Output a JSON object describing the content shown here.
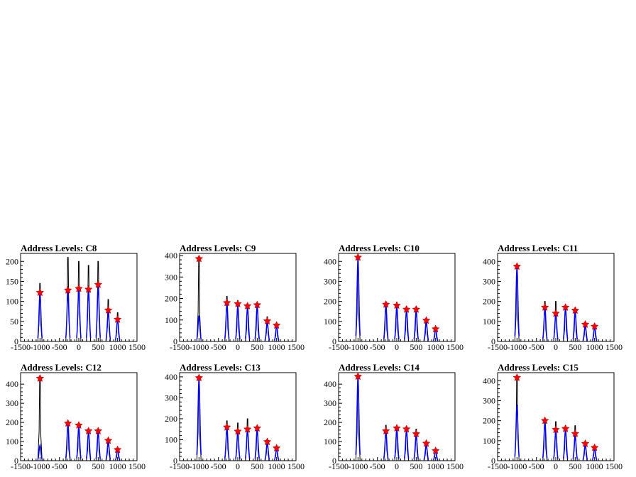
{
  "chart_data": [
    {
      "type": "histogram",
      "title": "Address Levels: C8",
      "xlim": [
        -1500,
        1500
      ],
      "ylim": [
        0,
        220
      ],
      "xticks": [
        -1500,
        -1000,
        -500,
        0,
        500,
        1000,
        1500
      ],
      "yticks": [
        0,
        50,
        100,
        150,
        200
      ],
      "peaks": [
        {
          "x": -1000,
          "y": 145,
          "fit": 120,
          "marker": 122
        },
        {
          "x": -280,
          "y": 210,
          "fit": 125,
          "marker": 128
        },
        {
          "x": 0,
          "y": 200,
          "fit": 130,
          "marker": 132
        },
        {
          "x": 250,
          "y": 190,
          "fit": 128,
          "marker": 130
        },
        {
          "x": 500,
          "y": 200,
          "fit": 140,
          "marker": 142
        },
        {
          "x": 760,
          "y": 105,
          "fit": 75,
          "marker": 78
        },
        {
          "x": 1000,
          "y": 72,
          "fit": 55,
          "marker": 55
        }
      ]
    },
    {
      "type": "histogram",
      "title": "Address Levels: C9",
      "xlim": [
        -1500,
        1500
      ],
      "ylim": [
        0,
        410
      ],
      "xticks": [
        -1500,
        -1000,
        -500,
        0,
        500,
        1000,
        1500
      ],
      "yticks": [
        0,
        100,
        200,
        300,
        400
      ],
      "peaks": [
        {
          "x": -1000,
          "y": 390,
          "fit": 120,
          "marker": 385
        },
        {
          "x": -280,
          "y": 210,
          "fit": 175,
          "marker": 180
        },
        {
          "x": 0,
          "y": 190,
          "fit": 165,
          "marker": 175
        },
        {
          "x": 250,
          "y": 175,
          "fit": 160,
          "marker": 165
        },
        {
          "x": 500,
          "y": 180,
          "fit": 165,
          "marker": 170
        },
        {
          "x": 760,
          "y": 115,
          "fit": 90,
          "marker": 95
        },
        {
          "x": 1000,
          "y": 85,
          "fit": 70,
          "marker": 75
        }
      ]
    },
    {
      "type": "histogram",
      "title": "Address Levels: C10",
      "xlim": [
        -1500,
        1500
      ],
      "ylim": [
        0,
        440
      ],
      "xticks": [
        -1500,
        -1000,
        -500,
        0,
        500,
        1000,
        1500
      ],
      "yticks": [
        0,
        100,
        200,
        300,
        400
      ],
      "peaks": [
        {
          "x": -1000,
          "y": 420,
          "fit": 410,
          "marker": 420
        },
        {
          "x": -280,
          "y": 195,
          "fit": 180,
          "marker": 185
        },
        {
          "x": 0,
          "y": 195,
          "fit": 175,
          "marker": 180
        },
        {
          "x": 250,
          "y": 175,
          "fit": 155,
          "marker": 160
        },
        {
          "x": 500,
          "y": 170,
          "fit": 155,
          "marker": 160
        },
        {
          "x": 760,
          "y": 115,
          "fit": 100,
          "marker": 105
        },
        {
          "x": 1000,
          "y": 70,
          "fit": 60,
          "marker": 62
        }
      ]
    },
    {
      "type": "histogram",
      "title": "Address Levels: C11",
      "xlim": [
        -1500,
        1500
      ],
      "ylim": [
        0,
        440
      ],
      "xticks": [
        -1500,
        -1000,
        -500,
        0,
        500,
        1000,
        1500
      ],
      "yticks": [
        0,
        100,
        200,
        300,
        400
      ],
      "peaks": [
        {
          "x": -1000,
          "y": 380,
          "fit": 370,
          "marker": 375
        },
        {
          "x": -280,
          "y": 200,
          "fit": 165,
          "marker": 170
        },
        {
          "x": 0,
          "y": 200,
          "fit": 135,
          "marker": 140
        },
        {
          "x": 250,
          "y": 180,
          "fit": 165,
          "marker": 170
        },
        {
          "x": 500,
          "y": 165,
          "fit": 150,
          "marker": 155
        },
        {
          "x": 760,
          "y": 95,
          "fit": 80,
          "marker": 85
        },
        {
          "x": 1000,
          "y": 85,
          "fit": 70,
          "marker": 75
        }
      ]
    },
    {
      "type": "histogram",
      "title": "Address Levels: C12",
      "xlim": [
        -1500,
        1500
      ],
      "ylim": [
        0,
        460
      ],
      "xticks": [
        -1500,
        -1000,
        -500,
        0,
        500,
        1000,
        1500
      ],
      "yticks": [
        0,
        100,
        200,
        300,
        400
      ],
      "peaks": [
        {
          "x": -1000,
          "y": 440,
          "fit": 80,
          "marker": 430
        },
        {
          "x": -280,
          "y": 200,
          "fit": 190,
          "marker": 195
        },
        {
          "x": 0,
          "y": 195,
          "fit": 180,
          "marker": 185
        },
        {
          "x": 250,
          "y": 165,
          "fit": 150,
          "marker": 155
        },
        {
          "x": 500,
          "y": 165,
          "fit": 150,
          "marker": 155
        },
        {
          "x": 760,
          "y": 115,
          "fit": 100,
          "marker": 105
        },
        {
          "x": 1000,
          "y": 65,
          "fit": 55,
          "marker": 57
        }
      ]
    },
    {
      "type": "histogram",
      "title": "Address Levels: C13",
      "xlim": [
        -1500,
        1500
      ],
      "ylim": [
        0,
        420
      ],
      "xticks": [
        -1500,
        -1000,
        -500,
        0,
        500,
        1000,
        1500
      ],
      "yticks": [
        0,
        100,
        200,
        300,
        400
      ],
      "peaks": [
        {
          "x": -1000,
          "y": 400,
          "fit": 390,
          "marker": 395
        },
        {
          "x": -280,
          "y": 190,
          "fit": 155,
          "marker": 160
        },
        {
          "x": 0,
          "y": 180,
          "fit": 135,
          "marker": 140
        },
        {
          "x": 250,
          "y": 200,
          "fit": 145,
          "marker": 150
        },
        {
          "x": 500,
          "y": 165,
          "fit": 150,
          "marker": 155
        },
        {
          "x": 760,
          "y": 100,
          "fit": 85,
          "marker": 90
        },
        {
          "x": 1000,
          "y": 70,
          "fit": 55,
          "marker": 60
        }
      ]
    },
    {
      "type": "histogram",
      "title": "Address Levels: C14",
      "xlim": [
        -1500,
        1500
      ],
      "ylim": [
        0,
        460
      ],
      "xticks": [
        -1500,
        -1000,
        -500,
        0,
        500,
        1000,
        1500
      ],
      "yticks": [
        0,
        100,
        200,
        300,
        400
      ],
      "peaks": [
        {
          "x": -1000,
          "y": 445,
          "fit": 435,
          "marker": 440
        },
        {
          "x": -280,
          "y": 185,
          "fit": 150,
          "marker": 155
        },
        {
          "x": 0,
          "y": 185,
          "fit": 165,
          "marker": 170
        },
        {
          "x": 250,
          "y": 180,
          "fit": 160,
          "marker": 165
        },
        {
          "x": 500,
          "y": 165,
          "fit": 135,
          "marker": 140
        },
        {
          "x": 760,
          "y": 100,
          "fit": 85,
          "marker": 90
        },
        {
          "x": 1000,
          "y": 60,
          "fit": 50,
          "marker": 52
        }
      ]
    },
    {
      "type": "histogram",
      "title": "Address Levels: C15",
      "xlim": [
        -1500,
        1500
      ],
      "ylim": [
        0,
        440
      ],
      "xticks": [
        -1500,
        -1000,
        -500,
        0,
        500,
        1000,
        1500
      ],
      "yticks": [
        0,
        100,
        200,
        300,
        400
      ],
      "peaks": [
        {
          "x": -1000,
          "y": 420,
          "fit": 280,
          "marker": 415
        },
        {
          "x": -280,
          "y": 210,
          "fit": 195,
          "marker": 200
        },
        {
          "x": 0,
          "y": 195,
          "fit": 150,
          "marker": 155
        },
        {
          "x": 250,
          "y": 175,
          "fit": 155,
          "marker": 160
        },
        {
          "x": 500,
          "y": 175,
          "fit": 125,
          "marker": 135
        },
        {
          "x": 760,
          "y": 95,
          "fit": 80,
          "marker": 85
        },
        {
          "x": 1000,
          "y": 75,
          "fit": 60,
          "marker": 65
        }
      ]
    }
  ]
}
